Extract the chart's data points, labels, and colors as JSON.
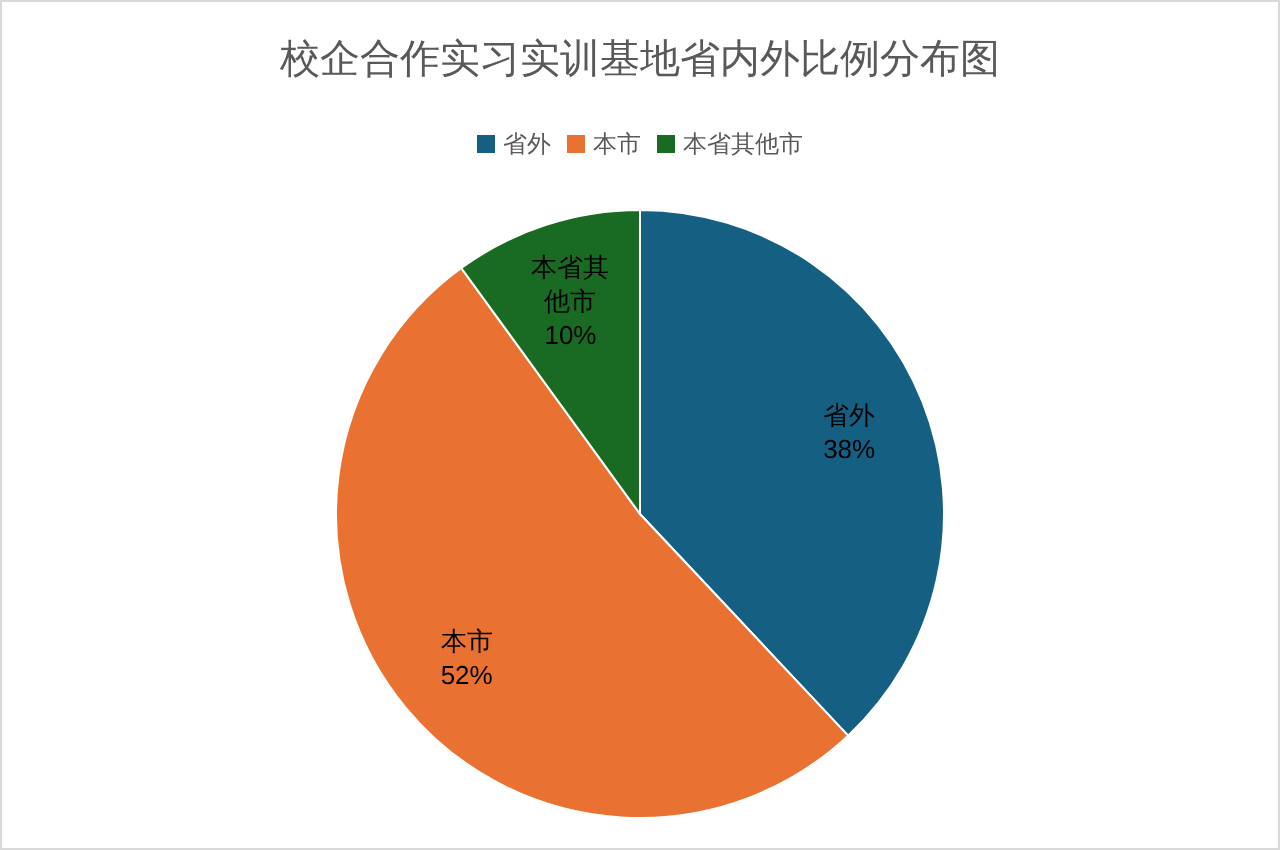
{
  "chart_data": {
    "type": "pie",
    "title": "校企合作实习实训基地省内外比例分布图",
    "categories": [
      "省外",
      "本市",
      "本省其他市"
    ],
    "values": [
      38,
      52,
      10
    ],
    "value_labels": [
      "38%",
      "52%",
      "10%"
    ],
    "colors": [
      "#156082",
      "#e97132",
      "#196b24"
    ],
    "legend": "top"
  }
}
